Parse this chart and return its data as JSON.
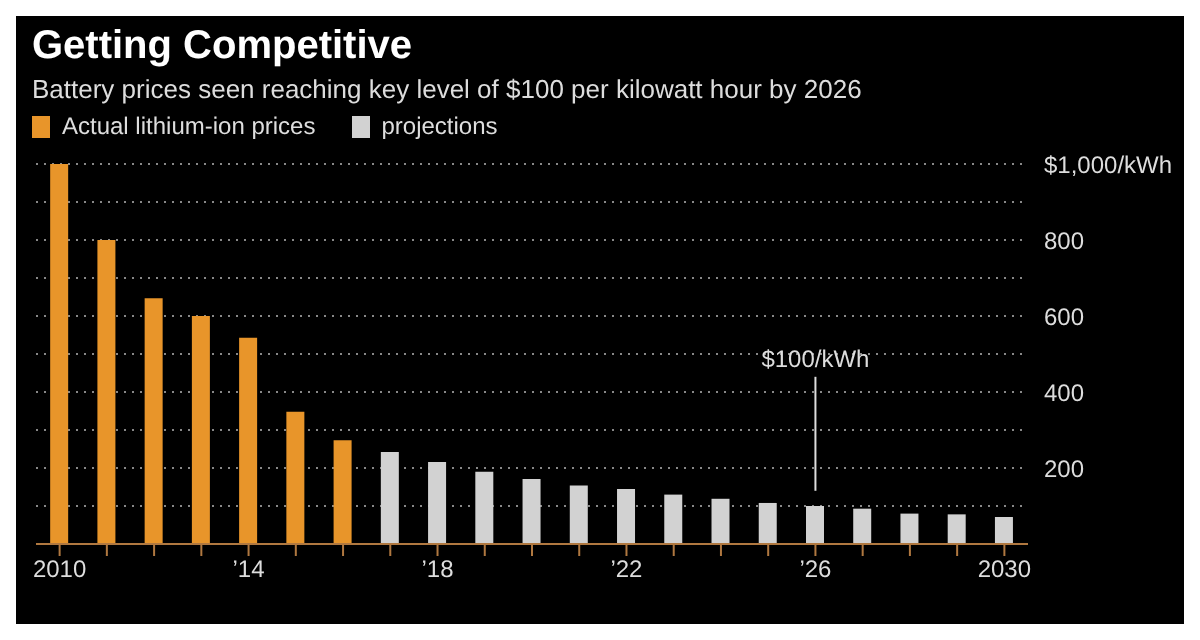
{
  "chart_data": {
    "type": "bar",
    "title": "Getting Competitive",
    "subtitle": "Battery prices seen reaching key level of $100 per kilowatt hour by 2026",
    "categories": [
      "2010",
      null,
      null,
      null,
      "’14",
      null,
      null,
      null,
      "’18",
      null,
      null,
      null,
      "’22",
      null,
      null,
      null,
      "’26",
      null,
      null,
      null,
      "2030"
    ],
    "series": [
      {
        "name": "Actual lithium-ion prices",
        "color": "#e8952a",
        "values": [
          1000,
          800,
          647,
          600,
          543,
          348,
          273,
          null,
          null,
          null,
          null,
          null,
          null,
          null,
          null,
          null,
          null,
          null,
          null,
          null,
          null
        ]
      },
      {
        "name": "projections",
        "color": "#d2d2d2",
        "values": [
          null,
          null,
          null,
          null,
          null,
          null,
          null,
          242,
          216,
          190,
          171,
          154,
          145,
          130,
          119,
          108,
          100,
          93,
          80,
          78,
          71
        ]
      }
    ],
    "ylim": [
      0,
      1000
    ],
    "yticks": [
      {
        "value": 100,
        "label": null
      },
      200,
      {
        "value": 300,
        "label": null
      },
      400,
      {
        "value": 500,
        "label": null
      },
      600,
      {
        "value": 700,
        "label": null
      },
      800,
      {
        "value": 900,
        "label": null
      },
      {
        "value": 1000,
        "label": "$1,000/kWh"
      }
    ],
    "grid": "y",
    "legend": "top left",
    "annotations": [
      {
        "text": "$100/kWh",
        "x": "’26",
        "y": 100
      }
    ]
  }
}
